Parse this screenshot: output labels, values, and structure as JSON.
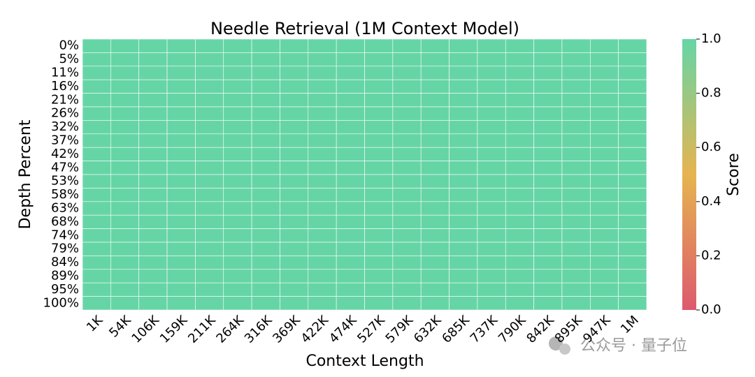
{
  "chart_data": {
    "type": "heatmap",
    "title": "Needle Retrieval (1M Context Model)",
    "x_label": "Context Length",
    "y_label": "Depth Percent",
    "x_categories": [
      "1K",
      "54K",
      "106K",
      "159K",
      "211K",
      "264K",
      "316K",
      "369K",
      "422K",
      "474K",
      "527K",
      "579K",
      "632K",
      "685K",
      "737K",
      "790K",
      "842K",
      "895K",
      "947K",
      "1M"
    ],
    "y_categories": [
      "0%",
      "5%",
      "11%",
      "16%",
      "21%",
      "26%",
      "32%",
      "37%",
      "42%",
      "47%",
      "53%",
      "58%",
      "63%",
      "68%",
      "74%",
      "79%",
      "84%",
      "89%",
      "95%",
      "100%"
    ],
    "z": [
      [
        1,
        1,
        1,
        1,
        1,
        1,
        1,
        1,
        1,
        1,
        1,
        1,
        1,
        1,
        1,
        1,
        1,
        1,
        1,
        1
      ],
      [
        1,
        1,
        1,
        1,
        1,
        1,
        1,
        1,
        1,
        1,
        1,
        1,
        1,
        1,
        1,
        1,
        1,
        1,
        1,
        1
      ],
      [
        1,
        1,
        1,
        1,
        1,
        1,
        1,
        1,
        1,
        1,
        1,
        1,
        1,
        1,
        1,
        1,
        1,
        1,
        1,
        1
      ],
      [
        1,
        1,
        1,
        1,
        1,
        1,
        1,
        1,
        1,
        1,
        1,
        1,
        1,
        1,
        1,
        1,
        1,
        1,
        1,
        1
      ],
      [
        1,
        1,
        1,
        1,
        1,
        1,
        1,
        1,
        1,
        1,
        1,
        1,
        1,
        1,
        1,
        1,
        1,
        1,
        1,
        1
      ],
      [
        1,
        1,
        1,
        1,
        1,
        1,
        1,
        1,
        1,
        1,
        1,
        1,
        1,
        1,
        1,
        1,
        1,
        1,
        1,
        1
      ],
      [
        1,
        1,
        1,
        1,
        1,
        1,
        1,
        1,
        1,
        1,
        1,
        1,
        1,
        1,
        1,
        1,
        1,
        1,
        1,
        1
      ],
      [
        1,
        1,
        1,
        1,
        1,
        1,
        1,
        1,
        1,
        1,
        1,
        1,
        1,
        1,
        1,
        1,
        1,
        1,
        1,
        1
      ],
      [
        1,
        1,
        1,
        1,
        1,
        1,
        1,
        1,
        1,
        1,
        1,
        1,
        1,
        1,
        1,
        1,
        1,
        1,
        1,
        1
      ],
      [
        1,
        1,
        1,
        1,
        1,
        1,
        1,
        1,
        1,
        1,
        1,
        1,
        1,
        1,
        1,
        1,
        1,
        1,
        1,
        1
      ],
      [
        1,
        1,
        1,
        1,
        1,
        1,
        1,
        1,
        1,
        1,
        1,
        1,
        1,
        1,
        1,
        1,
        1,
        1,
        1,
        1
      ],
      [
        1,
        1,
        1,
        1,
        1,
        1,
        1,
        1,
        1,
        1,
        1,
        1,
        1,
        1,
        1,
        1,
        1,
        1,
        1,
        1
      ],
      [
        1,
        1,
        1,
        1,
        1,
        1,
        1,
        1,
        1,
        1,
        1,
        1,
        1,
        1,
        1,
        1,
        1,
        1,
        1,
        1
      ],
      [
        1,
        1,
        1,
        1,
        1,
        1,
        1,
        1,
        1,
        1,
        1,
        1,
        1,
        1,
        1,
        1,
        1,
        1,
        1,
        1
      ],
      [
        1,
        1,
        1,
        1,
        1,
        1,
        1,
        1,
        1,
        1,
        1,
        1,
        1,
        1,
        1,
        1,
        1,
        1,
        1,
        1
      ],
      [
        1,
        1,
        1,
        1,
        1,
        1,
        1,
        1,
        1,
        1,
        1,
        1,
        1,
        1,
        1,
        1,
        1,
        1,
        1,
        1
      ],
      [
        1,
        1,
        1,
        1,
        1,
        1,
        1,
        1,
        1,
        1,
        1,
        1,
        1,
        1,
        1,
        1,
        1,
        1,
        1,
        1
      ],
      [
        1,
        1,
        1,
        1,
        1,
        1,
        1,
        1,
        1,
        1,
        1,
        1,
        1,
        1,
        1,
        1,
        1,
        1,
        1,
        1
      ],
      [
        1,
        1,
        1,
        1,
        1,
        1,
        1,
        1,
        1,
        1,
        1,
        1,
        1,
        1,
        1,
        1,
        1,
        1,
        1,
        1
      ],
      [
        1,
        1,
        1,
        1,
        1,
        1,
        1,
        1,
        1,
        1,
        1,
        1,
        1,
        1,
        1,
        1,
        1,
        1,
        1,
        1
      ]
    ],
    "colorbar_label": "Score",
    "zlim": [
      0,
      1
    ],
    "zticks": [
      {
        "value": 0,
        "label": "0.0"
      },
      {
        "value": 0.2,
        "label": "0.2"
      },
      {
        "value": 0.4,
        "label": "0.4"
      },
      {
        "value": 0.6,
        "label": "0.6"
      },
      {
        "value": 0.8,
        "label": "0.8"
      },
      {
        "value": 1,
        "label": "1.0"
      }
    ],
    "colorscale": [
      [
        0,
        "#dc5a6e"
      ],
      [
        0.5,
        "#e6b450"
      ],
      [
        1,
        "#66d5a6"
      ]
    ]
  },
  "watermark": "公众号 · 量子位"
}
